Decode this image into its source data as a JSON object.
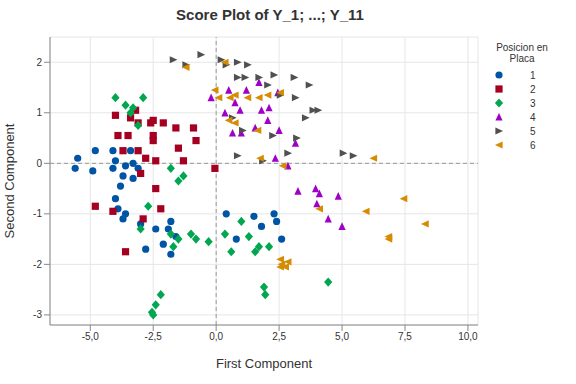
{
  "chart_data": {
    "type": "scatter",
    "title": "Score Plot of Y_1; ...; Y_11",
    "x_label": "First Component",
    "y_label": "Second Component",
    "legend_title": "Posicion en Placa",
    "legend": "right",
    "grid": true,
    "xlim": [
      -6.6,
      10.4
    ],
    "xticks": [
      {
        "value": -5,
        "label": "-5,0"
      },
      {
        "value": -2.5,
        "label": "-2,5"
      },
      {
        "value": 0,
        "label": "0,0"
      },
      {
        "value": 2.5,
        "label": "2,5"
      },
      {
        "value": 5,
        "label": "5,0"
      },
      {
        "value": 7.5,
        "label": "7,5"
      },
      {
        "value": 10,
        "label": "10,0"
      }
    ],
    "ylim": [
      -3.2,
      2.5
    ],
    "yticks": [
      -3,
      -2,
      -1,
      0,
      1,
      2
    ],
    "reference_lines": [
      {
        "axis": "x",
        "value": 0
      },
      {
        "axis": "y",
        "value": 0
      }
    ],
    "series": [
      {
        "name": "1",
        "color": "#0054A6",
        "marker": "circle",
        "x": [
          -5.6,
          -5.5,
          -4.8,
          -4.9,
          -4.1,
          -4.1,
          -4.0,
          -3.6,
          -3.4,
          -3.3,
          -3.3,
          -4.0,
          -3.9,
          -3.7,
          -3.6,
          -3.0,
          -2.4,
          -1.9,
          -1.8,
          -1.8,
          -2.8,
          -2.1,
          -1.6,
          0.4,
          1.5,
          1.8,
          2.3,
          2.4,
          2.6,
          0.8,
          -3.1,
          -3.7,
          -3.8
        ],
        "y": [
          -0.1,
          0.1,
          0.25,
          -0.15,
          0.25,
          -0.1,
          0.05,
          -0.05,
          0.25,
          0,
          -0.3,
          -0.7,
          -0.9,
          -1.1,
          -1.0,
          -1.2,
          -1.3,
          -1.3,
          -1.15,
          -1.8,
          -1.7,
          -1.6,
          -1.45,
          -1.0,
          -1.05,
          -1.25,
          -1.0,
          -1.15,
          -1.5,
          -1.5,
          -0.1,
          -0.25,
          -0.45
        ]
      },
      {
        "name": "2",
        "color": "#A50021",
        "marker": "square",
        "x": [
          -4.8,
          -4.1,
          -4.0,
          -3.9,
          -3.5,
          -3.2,
          -3.4,
          -3.1,
          -2.6,
          -2.5,
          -2.1,
          -1.6,
          -0.9,
          -0.8,
          -2.5,
          -3.7,
          -3.1,
          -2.8,
          -2.4,
          -1.5,
          -1.3,
          -2.4,
          -2.9,
          -3.6,
          -0.05,
          -3.0,
          -2.2,
          -2.5
        ],
        "y": [
          -0.85,
          -0.95,
          0.95,
          0.55,
          0.55,
          1.05,
          0.9,
          0.8,
          0.8,
          0.85,
          0.8,
          0.7,
          0.7,
          0.45,
          0.55,
          0.25,
          0.25,
          0.1,
          0.05,
          0.3,
          0.05,
          -0.5,
          -1.1,
          -1.75,
          -0.1,
          -0.2,
          -0.9,
          0.45
        ]
      },
      {
        "name": "3",
        "color": "#00A650",
        "marker": "diamond",
        "x": [
          -4.0,
          -3.6,
          -3.3,
          -2.9,
          -3.4,
          -3.1,
          -1.8,
          -1.3,
          -1.5,
          -2.7,
          -3.0,
          -1.8,
          -1.5,
          -1.0,
          -0.8,
          -0.3,
          -1.7,
          0.35,
          0.6,
          1.0,
          1.3,
          1.7,
          2.1,
          1.9,
          1.95,
          4.45,
          -2.2,
          -2.4,
          -2.55,
          -2.5,
          1.55
        ],
        "y": [
          1.3,
          1.15,
          1.1,
          1.3,
          1.0,
          0.75,
          -0.1,
          -0.25,
          -0.35,
          -0.85,
          -1.3,
          -1.4,
          -1.5,
          -1.4,
          -1.5,
          -1.55,
          -1.65,
          -1.4,
          -1.75,
          -1.15,
          -1.45,
          -1.65,
          -1.65,
          -2.45,
          -2.6,
          -2.35,
          -2.6,
          -2.8,
          -2.95,
          -3.0,
          -1.75
        ]
      },
      {
        "name": "4",
        "color": "#9E00C5",
        "marker": "triangle-up",
        "x": [
          -0.2,
          0.5,
          0.75,
          0.35,
          0.95,
          1.2,
          1.7,
          1.8,
          2.1,
          2.05,
          1.55,
          1.0,
          0.65,
          2.45,
          2.5,
          3.15,
          2.35,
          3.95,
          4.1,
          4.0,
          3.25,
          4.85,
          5.0,
          4.45,
          2.85
        ],
        "y": [
          1.3,
          1.45,
          1.2,
          1.0,
          1.05,
          1.45,
          1.6,
          1.05,
          1.1,
          0.85,
          0.7,
          0.6,
          0.6,
          1.4,
          0.65,
          0.4,
          0.1,
          -0.5,
          -0.6,
          -0.8,
          -0.55,
          -0.65,
          -1.25,
          -1.1,
          -0.05
        ]
      },
      {
        "name": "5",
        "color": "#505050",
        "marker": "triangle-right",
        "x": [
          -1.7,
          -1.2,
          -0.6,
          0.2,
          0.4,
          0.85,
          1.25,
          0.85,
          1.15,
          1.7,
          2.05,
          2.3,
          3.1,
          2.55,
          3.15,
          3.7,
          3.85,
          3.55,
          0.65,
          1.05,
          2.25,
          3.2,
          4.05,
          0.85,
          5.05,
          5.45,
          2.85,
          1.85
        ],
        "y": [
          2.05,
          1.95,
          2.15,
          2.05,
          1.95,
          2.0,
          1.95,
          1.7,
          1.7,
          1.7,
          1.55,
          1.75,
          1.7,
          1.35,
          1.3,
          1.55,
          1.05,
          0.9,
          0.9,
          0.65,
          0.55,
          0.5,
          1.05,
          0.15,
          0.2,
          0.15,
          0.2,
          0.05
        ]
      },
      {
        "name": "6",
        "color": "#D68B00",
        "marker": "triangle-left",
        "x": [
          -1.2,
          0.35,
          -0.05,
          0.1,
          0.55,
          0.75,
          1.25,
          1.7,
          2.55,
          2.05,
          0.5,
          0.75,
          1.65,
          2.65,
          1.75,
          5.95,
          4.1,
          8.3,
          7.45,
          6.85,
          6.85,
          2.55,
          2.6,
          2.75,
          2.55,
          2.85,
          6.25
        ],
        "y": [
          1.9,
          2.0,
          1.45,
          1.3,
          1.3,
          1.35,
          1.3,
          1.3,
          1.4,
          1.35,
          0.85,
          0.8,
          0.65,
          -0.05,
          0.1,
          -0.95,
          -0.9,
          -1.2,
          -0.7,
          -1.45,
          -1.5,
          -1.9,
          -2.0,
          -2.05,
          -2.05,
          -1.95,
          0.1
        ]
      }
    ]
  }
}
